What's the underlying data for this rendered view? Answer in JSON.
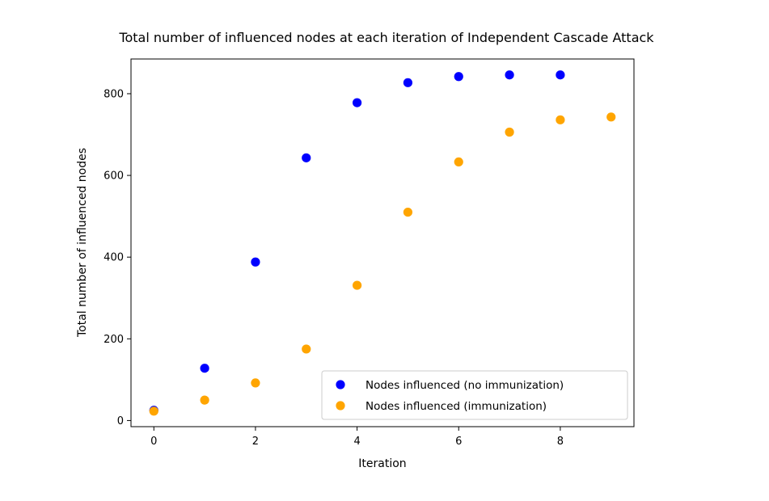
{
  "chart_data": {
    "type": "scatter",
    "title": "Total number of influenced nodes at each iteration of Independent Cascade Attack",
    "xlabel": "Iteration",
    "ylabel": "Total number of influenced nodes",
    "xlim": [
      -0.45,
      9.45
    ],
    "ylim": [
      -15,
      885
    ],
    "xticks": [
      0,
      2,
      4,
      6,
      8
    ],
    "yticks": [
      0,
      200,
      400,
      600,
      800
    ],
    "grid": false,
    "legend_position": "lower-right",
    "series": [
      {
        "name": "Nodes influenced (no immunization)",
        "color": "#0000ff",
        "x": [
          0,
          1,
          2,
          3,
          4,
          5,
          6,
          7,
          8
        ],
        "y": [
          25,
          128,
          388,
          643,
          778,
          827,
          842,
          846,
          846
        ]
      },
      {
        "name": "Nodes influenced (immunization)",
        "color": "#ffa500",
        "x": [
          0,
          1,
          2,
          3,
          4,
          5,
          6,
          7,
          8,
          9
        ],
        "y": [
          23,
          50,
          92,
          175,
          331,
          510,
          633,
          706,
          736,
          743
        ]
      }
    ]
  }
}
